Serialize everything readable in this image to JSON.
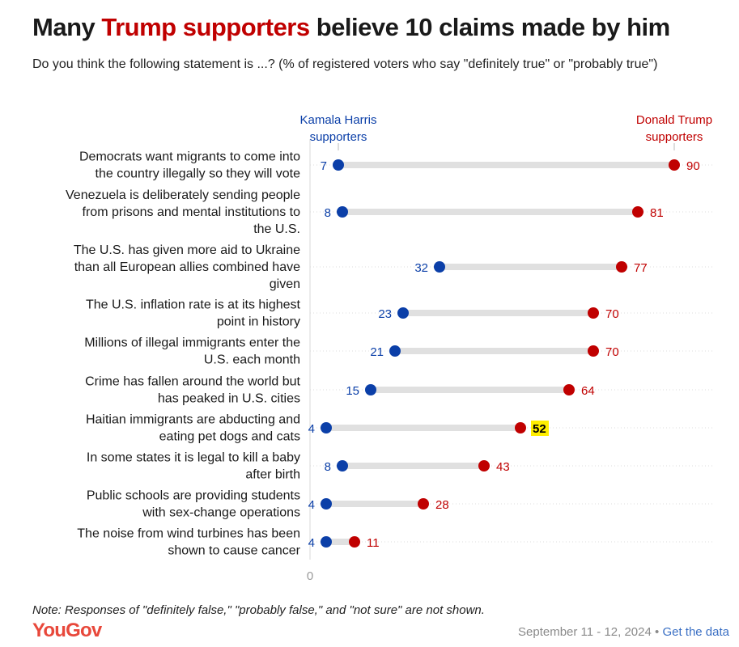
{
  "header": {
    "title_pre": "Many ",
    "title_highlight": "Trump supporters",
    "title_post": " believe 10 claims made by him",
    "subtitle": "Do you think the following statement is ...? (% of registered voters who say \"definitely true\" or \"probably true\")"
  },
  "colors": {
    "harris": "#0b3fa8",
    "trump": "#c00000",
    "connector": "#e0e0e0",
    "highlight": "#ffee00"
  },
  "chart_data": {
    "type": "dot",
    "xlim": [
      0,
      100
    ],
    "zero_label": "0",
    "series": [
      {
        "name": "Kamala Harris supporters",
        "label_lines": [
          "Kamala Harris",
          "supporters"
        ],
        "values": [
          7,
          8,
          32,
          23,
          21,
          15,
          4,
          8,
          4,
          4
        ]
      },
      {
        "name": "Donald Trump supporters",
        "label_lines": [
          "Donald Trump",
          "supporters"
        ],
        "values": [
          90,
          81,
          77,
          70,
          70,
          64,
          52,
          43,
          28,
          11
        ]
      }
    ],
    "categories": [
      [
        "Democrats want migrants to come into",
        "the country illegally so they will vote"
      ],
      [
        "Venezuela is deliberately sending people",
        "from prisons and mental institutions to",
        "the U.S."
      ],
      [
        "The U.S. has given more aid to Ukraine",
        "than all European allies combined have",
        "given"
      ],
      [
        "The U.S. inflation rate is at its highest",
        "point in history"
      ],
      [
        "Millions of illegal immigrants enter the",
        "U.S. each month"
      ],
      [
        "Crime has fallen around the world but",
        "has peaked in U.S. cities"
      ],
      [
        "Haitian immigrants are abducting and",
        "eating pet dogs and cats"
      ],
      [
        "In some states it is legal to kill a baby",
        "after birth"
      ],
      [
        "Public schools are providing students",
        "with sex-change operations"
      ],
      [
        "The noise from wind turbines has been",
        "shown to cause cancer"
      ]
    ],
    "highlighted_value": {
      "series": 1,
      "index": 6
    }
  },
  "footer": {
    "note": "Note: Responses of \"definitely false,\" \"probably false,\" and \"not sure\" are not shown.",
    "logo": "YouGov",
    "date": "September 11 - 12, 2024",
    "separator": " • ",
    "link": "Get the data"
  }
}
